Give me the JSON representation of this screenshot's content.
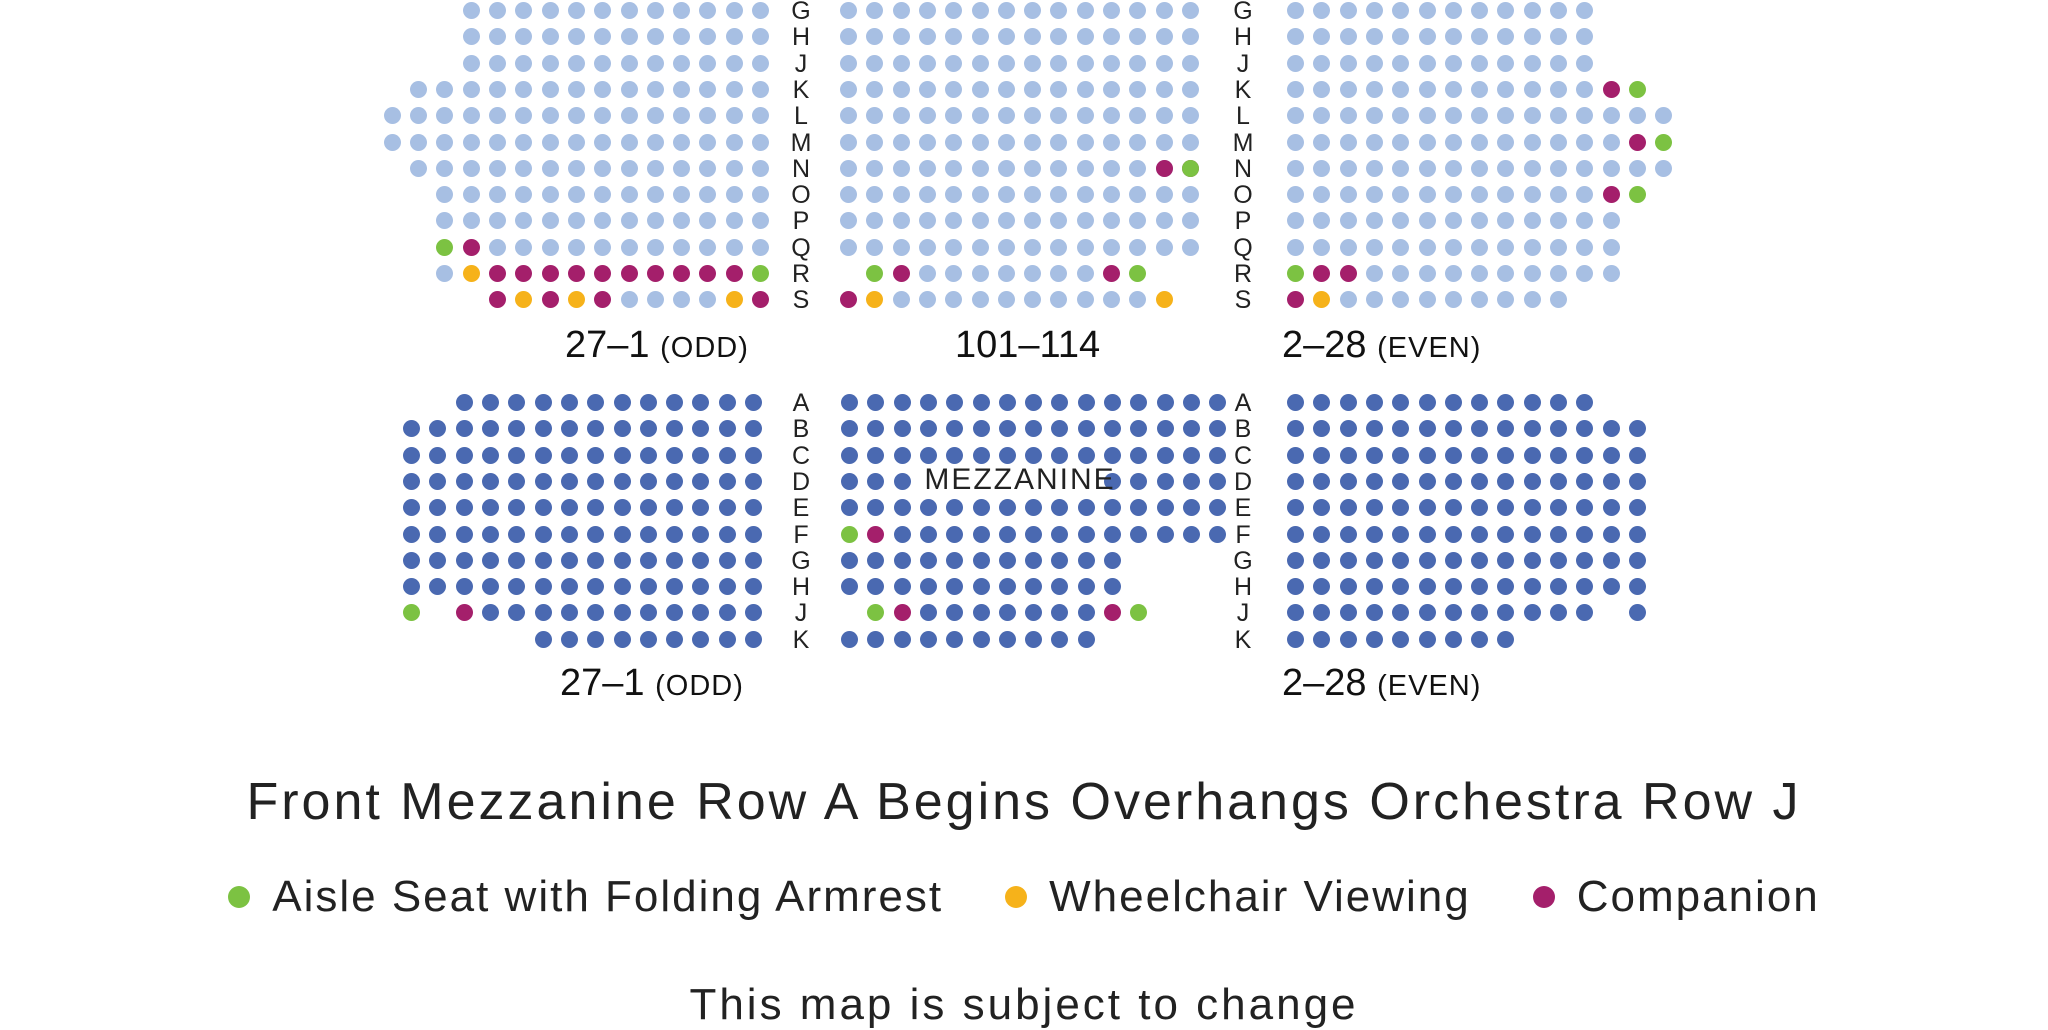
{
  "colors": {
    "orchestra": "#a7bfe3",
    "mezzanine": "#4a69b1",
    "aisle": "#7cc242",
    "wheelchair": "#f6b21a",
    "companion": "#a41f6b"
  },
  "orchestra": {
    "row_letters": [
      "G",
      "H",
      "J",
      "K",
      "L",
      "M",
      "N",
      "O",
      "P",
      "Q",
      "R",
      "S"
    ],
    "left_label": {
      "range": "27–1",
      "tag": "(ODD)"
    },
    "center_label": "101–114",
    "right_label": {
      "range": "2–28",
      "tag": "(EVEN)"
    }
  },
  "mezzanine": {
    "title": "MEZZANINE",
    "row_letters": [
      "A",
      "B",
      "C",
      "D",
      "E",
      "F",
      "G",
      "H",
      "J",
      "K"
    ],
    "left_label": {
      "range": "27–1",
      "tag": "(ODD)"
    },
    "right_label": {
      "range": "2–28",
      "tag": "(EVEN)"
    }
  },
  "headline": "Front Mezzanine Row A Begins Overhangs Orchestra Row J",
  "legend": [
    {
      "key": "aisle",
      "label": "Aisle Seat with Folding Armrest"
    },
    {
      "key": "wheelchair",
      "label": "Wheelchair Viewing"
    },
    {
      "key": "companion",
      "label": "Companion"
    }
  ],
  "footer": "This map is subject to change"
}
